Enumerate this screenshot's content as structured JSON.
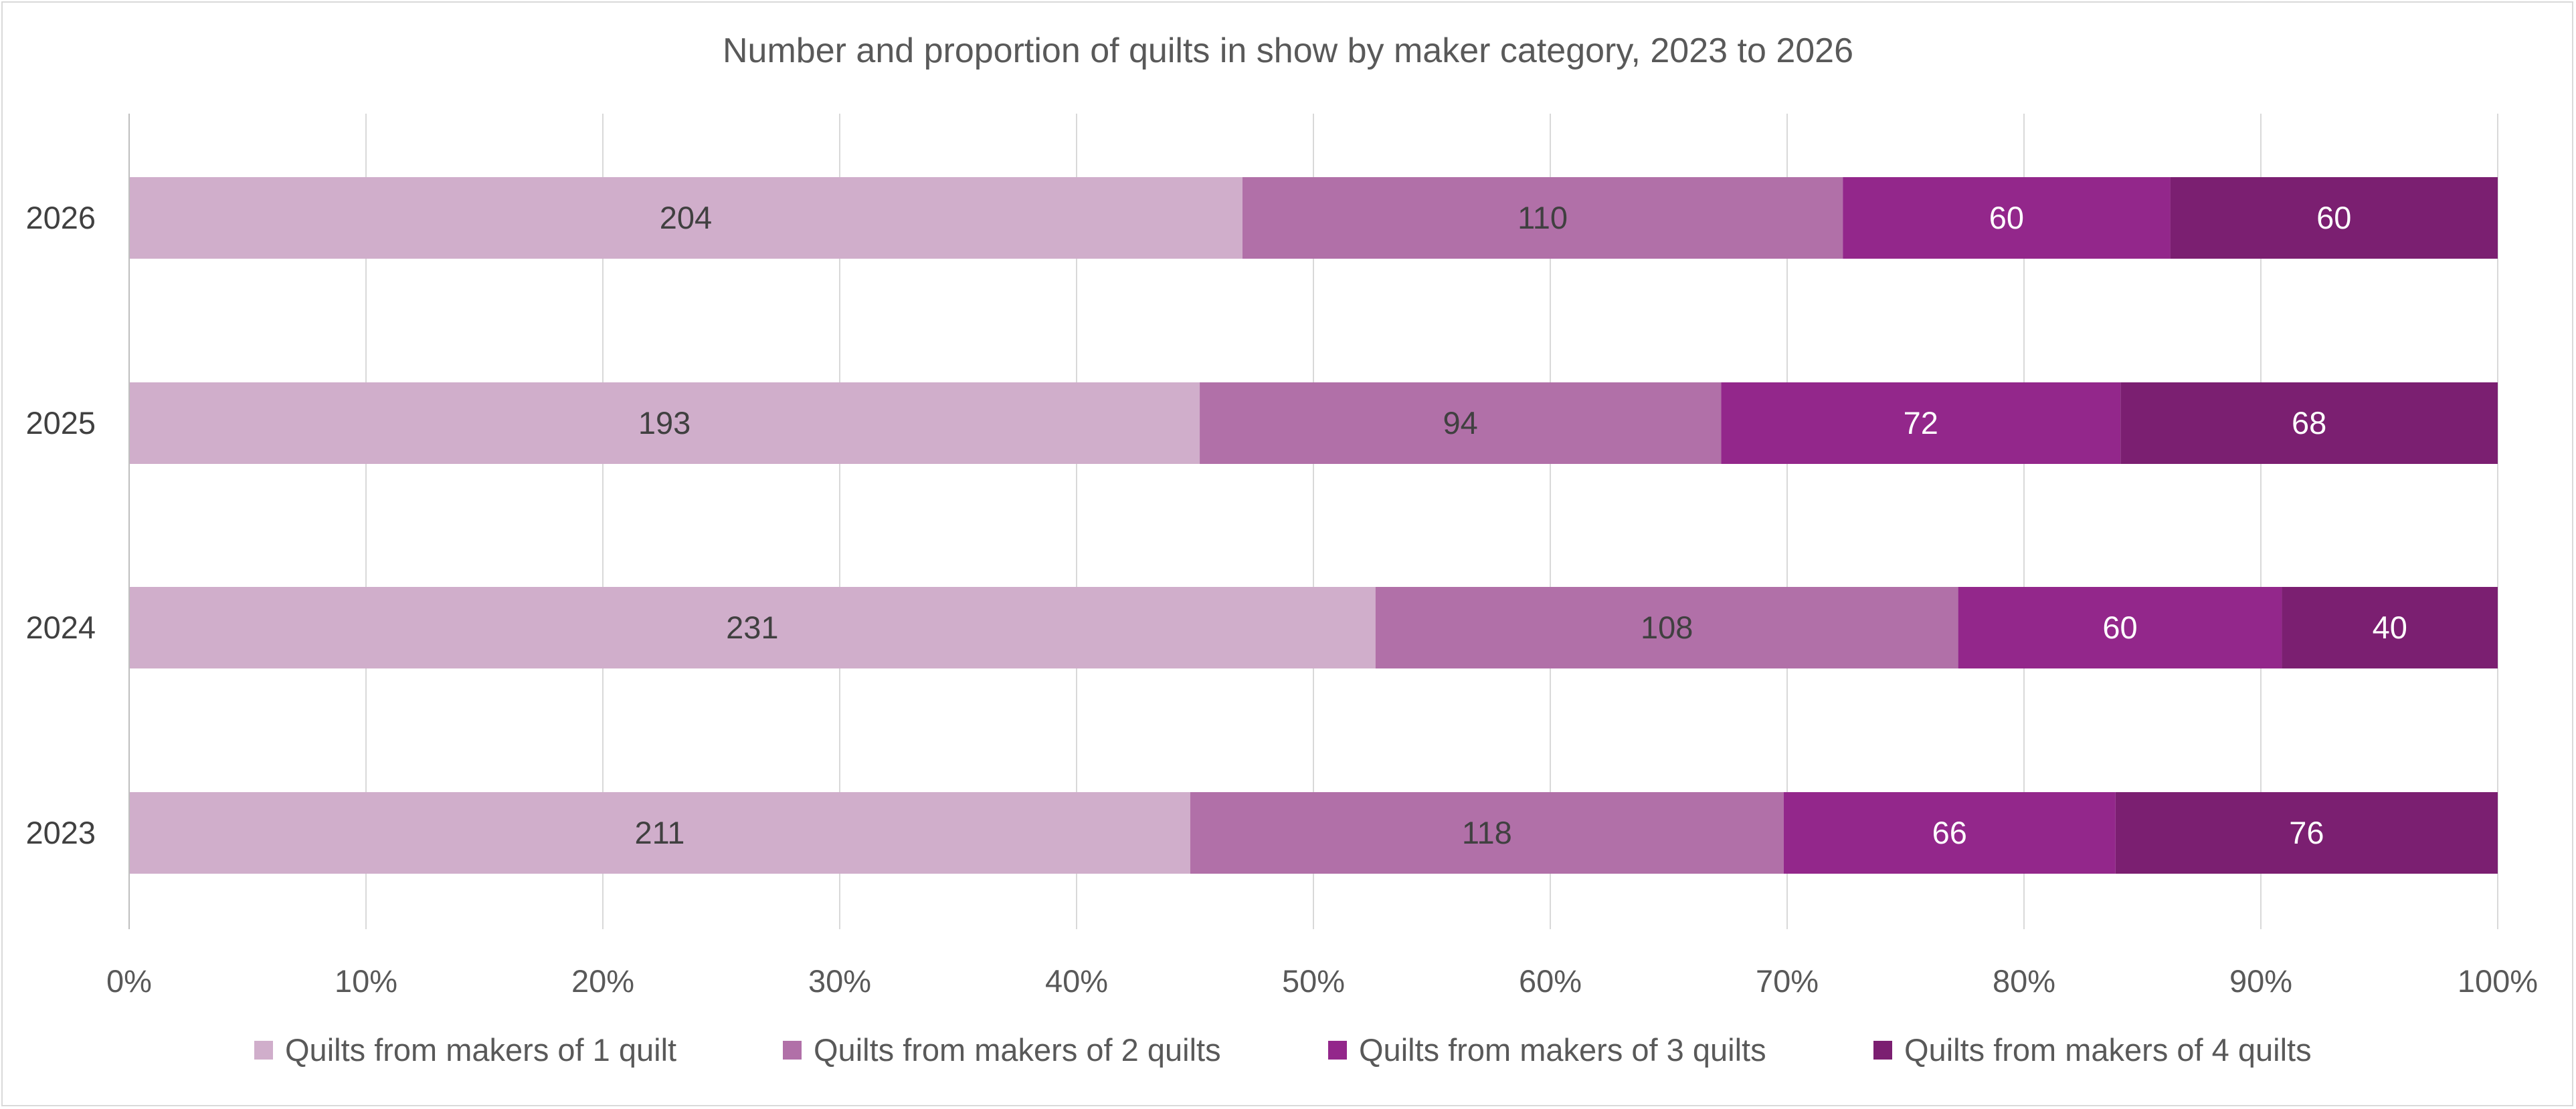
{
  "chart_data": {
    "type": "bar",
    "orientation": "horizontal",
    "stacked": "percent",
    "title": "Number and proportion of quilts in show by maker category, 2023 to 2026",
    "categories": [
      "2026",
      "2025",
      "2024",
      "2023"
    ],
    "series": [
      {
        "name": "Quilts from makers of 1 quilt",
        "values": [
          204,
          193,
          231,
          211
        ],
        "color": "#d0aecb",
        "label_color": "#404040"
      },
      {
        "name": "Quilts from makers of 2 quilts",
        "values": [
          110,
          94,
          108,
          118
        ],
        "color": "#b170a8",
        "label_color": "#404040"
      },
      {
        "name": "Quilts from makers of 3 quilts",
        "values": [
          60,
          72,
          60,
          66
        ],
        "color": "#93278b",
        "label_color": "#ffffff"
      },
      {
        "name": "Quilts from makers of 4 quilts",
        "values": [
          60,
          68,
          40,
          76
        ],
        "color": "#7b1f71",
        "label_color": "#ffffff"
      }
    ],
    "x_ticks": [
      "0%",
      "10%",
      "20%",
      "30%",
      "40%",
      "50%",
      "60%",
      "70%",
      "80%",
      "90%",
      "100%"
    ],
    "xlim": [
      0,
      100
    ],
    "grid": "vertical",
    "legend_position": "bottom"
  }
}
